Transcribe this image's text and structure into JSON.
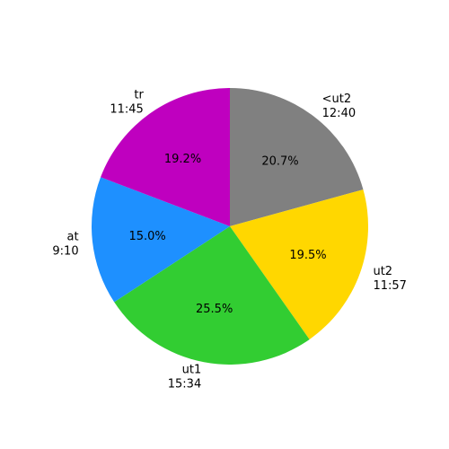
{
  "chart_data": {
    "type": "pie",
    "categories": [
      [
        "<ut2",
        "12:40"
      ],
      [
        "ut2",
        "11:57"
      ],
      [
        "ut1",
        "15:34"
      ],
      [
        "at",
        "9:10"
      ],
      [
        "tr",
        "11:45"
      ]
    ],
    "values": [
      20.7,
      19.5,
      25.5,
      15.0,
      19.2
    ],
    "value_labels": [
      "20.7%",
      "19.5%",
      "25.5%",
      "15.0%",
      "19.2%"
    ],
    "colors": [
      "#808080",
      "#ffd700",
      "#32cd32",
      "#1e90ff",
      "#bf00bf"
    ]
  }
}
